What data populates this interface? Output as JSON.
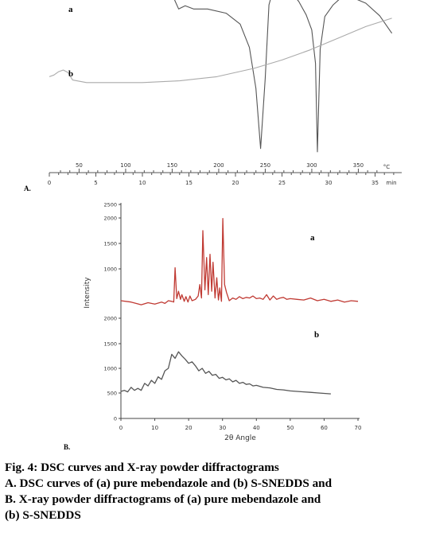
{
  "chart_data": [
    {
      "type": "line",
      "panel_label": "A.",
      "top_axis": {
        "ticks": [
          50,
          100,
          150,
          200,
          250,
          300,
          350
        ],
        "unit": "°C"
      },
      "bottom_axis": {
        "ticks": [
          0,
          5,
          10,
          15,
          20,
          25,
          30,
          35
        ],
        "unit": "min",
        "range": [
          0,
          37
        ]
      },
      "series": [
        {
          "name": "a",
          "color": "#555555",
          "x": [
            0,
            5,
            10,
            12,
            13.2,
            13.5,
            13.9,
            14.6,
            15.5,
            17,
            19,
            20.5,
            21.5,
            22.2,
            22.7,
            23.2,
            23.6,
            24.2,
            25,
            26,
            26.8,
            27.6,
            28.2,
            28.6,
            28.8,
            29.1,
            29.6,
            30.5,
            31.5,
            32.5,
            34,
            35.5,
            36.8
          ],
          "y": [
            3.0,
            3.12,
            3.22,
            3.25,
            3.3,
            2.3,
            1.3,
            1.7,
            1.3,
            1.3,
            0.8,
            -0.5,
            -3.3,
            -8.2,
            -15.4,
            -7.0,
            1.8,
            4.2,
            3.9,
            3.3,
            2.2,
            0.6,
            -1.2,
            -5.2,
            -15.8,
            -3.5,
            0.4,
            1.8,
            2.8,
            2.7,
            2.0,
            0.5,
            -1.6
          ]
        },
        {
          "name": "b",
          "color": "#aaaaaa",
          "x": [
            0,
            0.5,
            1,
            1.5,
            2,
            2.5,
            4,
            7,
            10,
            14,
            18,
            22,
            25,
            28,
            31,
            34,
            36.8
          ],
          "y": [
            -6.8,
            -6.6,
            -6.2,
            -6.0,
            -6.3,
            -7.2,
            -7.5,
            -7.5,
            -7.5,
            -7.3,
            -6.8,
            -5.8,
            -4.8,
            -3.6,
            -2.2,
            -0.8,
            0.2
          ]
        }
      ]
    },
    {
      "type": "line",
      "panel_label": "B.",
      "xlabel": "2θ Angle",
      "ylabel": "Intensity",
      "xlim": [
        0,
        70
      ],
      "ylim": [
        0,
        2500
      ],
      "x_ticks": [
        0,
        10,
        20,
        30,
        40,
        50,
        60,
        70
      ],
      "y_ticks_lower": [
        "0",
        "500",
        "1000",
        "1500",
        "2000"
      ],
      "y_ticks_upper": [
        "1000",
        "1500",
        "2000",
        "2500"
      ],
      "series": [
        {
          "name": "a",
          "color": "#c03a33",
          "x": [
            0,
            3,
            6,
            8,
            10,
            12,
            13,
            14,
            15,
            15.6,
            16,
            16.5,
            17,
            17.6,
            18,
            18.7,
            19.2,
            19.8,
            20.4,
            21,
            22,
            22.8,
            23.3,
            23.8,
            24.2,
            24.8,
            25.3,
            25.8,
            26.3,
            26.8,
            27.2,
            27.8,
            28.3,
            28.8,
            29.2,
            29.7,
            30.1,
            30.6,
            31.2,
            32,
            33,
            34,
            35,
            36,
            37,
            38,
            39,
            40,
            41,
            42,
            43,
            44,
            45,
            46,
            47,
            48,
            49,
            50,
            52,
            54,
            56,
            58,
            60,
            62,
            64,
            66,
            68,
            70
          ],
          "y": [
            2260,
            2240,
            2200,
            2230,
            2210,
            2240,
            2220,
            2260,
            2250,
            2240,
            2750,
            2290,
            2400,
            2280,
            2350,
            2250,
            2320,
            2240,
            2330,
            2260,
            2280,
            2330,
            2500,
            2300,
            3300,
            2420,
            2900,
            2350,
            2950,
            2400,
            2830,
            2300,
            2600,
            2270,
            2450,
            2250,
            3480,
            2500,
            2380,
            2260,
            2300,
            2280,
            2320,
            2290,
            2310,
            2300,
            2330,
            2290,
            2300,
            2280,
            2350,
            2270,
            2330,
            2280,
            2300,
            2310,
            2280,
            2290,
            2280,
            2270,
            2300,
            2260,
            2280,
            2250,
            2270,
            2240,
            2260,
            2250
          ]
        },
        {
          "name": "b",
          "color": "#555555",
          "x": [
            0,
            1,
            2,
            3,
            4,
            5,
            6,
            7,
            8,
            9,
            10,
            11,
            12,
            13,
            14,
            15,
            16,
            17,
            18,
            19,
            20,
            21,
            22,
            23,
            24,
            25,
            26,
            27,
            28,
            29,
            30,
            31,
            32,
            33,
            34,
            35,
            36,
            37,
            38,
            39,
            40,
            42,
            44,
            46,
            48,
            50,
            52,
            54,
            56,
            58,
            60,
            62
          ],
          "y": [
            540,
            560,
            530,
            620,
            560,
            600,
            560,
            700,
            650,
            760,
            700,
            830,
            780,
            950,
            1000,
            1280,
            1200,
            1330,
            1250,
            1180,
            1100,
            1130,
            1050,
            950,
            1000,
            900,
            940,
            860,
            880,
            800,
            820,
            770,
            790,
            730,
            760,
            700,
            720,
            680,
            690,
            650,
            660,
            620,
            610,
            580,
            570,
            550,
            540,
            530,
            520,
            510,
            500,
            490
          ]
        }
      ]
    }
  ],
  "caption": {
    "line1": "Fig. 4: DSC curves and X-ray powder diffractograms",
    "line2": "A. DSC curves of (a) pure mebendazole and (b) S-SNEDDS and",
    "line3": "B. X-ray powder diffractograms of (a) pure mebendazole and",
    "line4": "(b) S-SNEDDS"
  }
}
